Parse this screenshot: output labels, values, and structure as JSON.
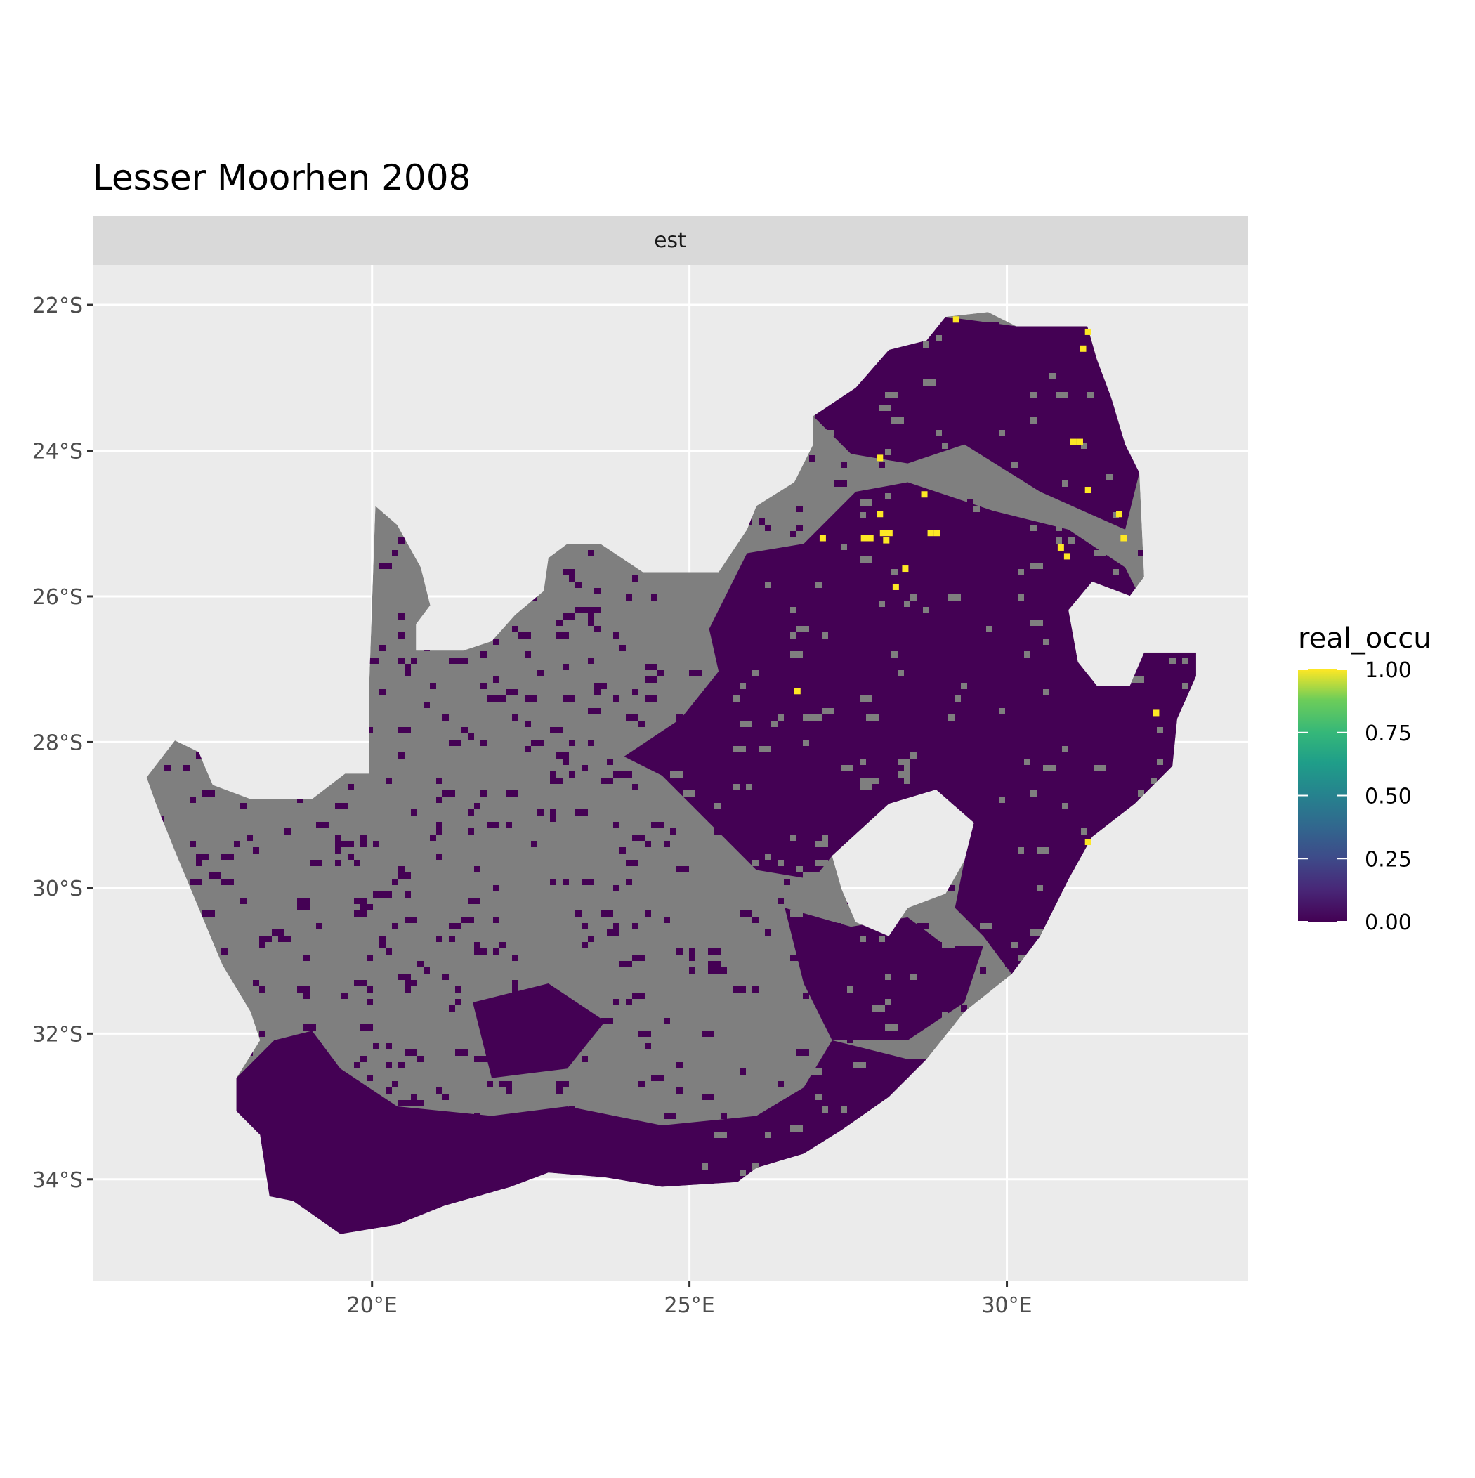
{
  "chart_data": {
    "type": "heatmap",
    "title": "Lesser Moorhen 2008",
    "facet_label": "est",
    "x_ticks": [
      {
        "value": 20,
        "label": "20°E"
      },
      {
        "value": 25,
        "label": "25°E"
      },
      {
        "value": 30,
        "label": "30°E"
      }
    ],
    "y_ticks": [
      {
        "value": -22,
        "label": "22°S"
      },
      {
        "value": -24,
        "label": "24°S"
      },
      {
        "value": -26,
        "label": "26°S"
      },
      {
        "value": -28,
        "label": "28°S"
      },
      {
        "value": -30,
        "label": "30°S"
      },
      {
        "value": -32,
        "label": "32°S"
      },
      {
        "value": -34,
        "label": "34°S"
      }
    ],
    "xlim": [
      15.6,
      33.8
    ],
    "ylim": [
      -35.4,
      -21.45
    ],
    "grid": true,
    "legend": {
      "title": "real_occu",
      "position": "right",
      "ticks": [
        {
          "value": 1.0,
          "label": "1.00"
        },
        {
          "value": 0.75,
          "label": "0.75"
        },
        {
          "value": 0.5,
          "label": "0.50"
        },
        {
          "value": 0.25,
          "label": "0.25"
        },
        {
          "value": 0.0,
          "label": "0.00"
        }
      ],
      "range": [
        0,
        1
      ],
      "colormap": "viridis"
    },
    "colors": {
      "na_cells": "#7F7F7F",
      "low": "#440154",
      "high": "#FDE725",
      "panel": "#EBEBEB",
      "strip": "#D9D9D9"
    },
    "high_value_cells": [
      {
        "lon": 31.28,
        "lat": -22.37,
        "value": 1
      },
      {
        "lon": 29.2,
        "lat": -22.2,
        "value": 1
      },
      {
        "lon": 31.2,
        "lat": -22.6,
        "value": 1
      },
      {
        "lon": 31.05,
        "lat": -23.88,
        "value": 1
      },
      {
        "lon": 31.15,
        "lat": -23.88,
        "value": 1
      },
      {
        "lon": 31.28,
        "lat": -24.54,
        "value": 1
      },
      {
        "lon": 28.0,
        "lat": -24.1,
        "value": 1
      },
      {
        "lon": 28.7,
        "lat": -24.6,
        "value": 1
      },
      {
        "lon": 28.0,
        "lat": -24.87,
        "value": 1
      },
      {
        "lon": 31.77,
        "lat": -24.87,
        "value": 1
      },
      {
        "lon": 27.75,
        "lat": -25.2,
        "value": 1
      },
      {
        "lon": 27.85,
        "lat": -25.2,
        "value": 1
      },
      {
        "lon": 28.05,
        "lat": -25.13,
        "value": 1
      },
      {
        "lon": 28.15,
        "lat": -25.13,
        "value": 1
      },
      {
        "lon": 28.1,
        "lat": -25.23,
        "value": 1
      },
      {
        "lon": 28.8,
        "lat": -25.13,
        "value": 1
      },
      {
        "lon": 28.9,
        "lat": -25.13,
        "value": 1
      },
      {
        "lon": 27.1,
        "lat": -25.2,
        "value": 1
      },
      {
        "lon": 30.85,
        "lat": -25.33,
        "value": 1
      },
      {
        "lon": 30.95,
        "lat": -25.45,
        "value": 1
      },
      {
        "lon": 31.84,
        "lat": -25.2,
        "value": 1
      },
      {
        "lon": 28.4,
        "lat": -25.62,
        "value": 1
      },
      {
        "lon": 28.25,
        "lat": -25.87,
        "value": 1
      },
      {
        "lon": 26.7,
        "lat": -27.3,
        "value": 1
      },
      {
        "lon": 32.35,
        "lat": -27.6,
        "value": 1
      },
      {
        "lon": 31.28,
        "lat": -29.37,
        "value": 1
      }
    ]
  }
}
